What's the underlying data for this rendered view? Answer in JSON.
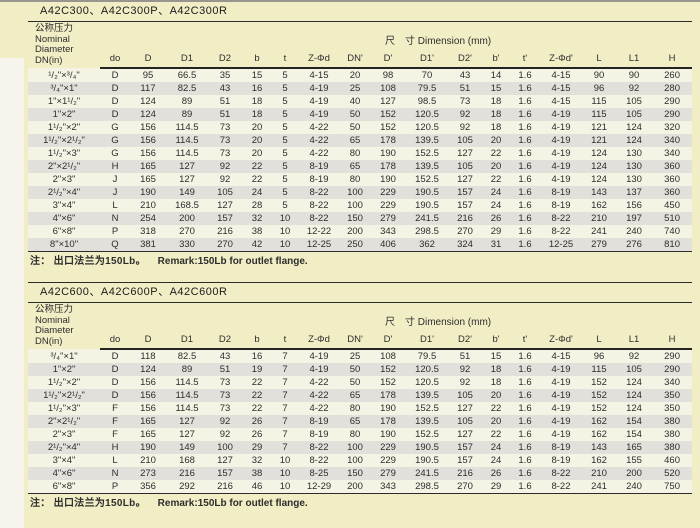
{
  "page": {
    "bg_color": "#f1eec6",
    "stripe_light": "#f5f3e4",
    "stripe_gray": "#e1e0da",
    "rule_color": "#2b2b2b"
  },
  "header": {
    "first_col": {
      "line1": "公称压力",
      "line2": "Nominal",
      "line3": "Diameter",
      "line4": "DN(in)"
    },
    "dimension_label": "尺　寸 Dimension (mm)",
    "columns": [
      "do",
      "D",
      "D1",
      "D2",
      "b",
      "t",
      "Z-Φd",
      "DN'",
      "D'",
      "D1'",
      "D2'",
      "b'",
      "t'",
      "Z-Φd'",
      "L",
      "L1",
      "H"
    ]
  },
  "tables": [
    {
      "title": "A42C300、A42C300P、A42C300R",
      "note_cn": "注： 出口法兰为150Lb。",
      "note_en": "Remark:150Lb for outlet flange.",
      "rows": [
        [
          "¹/₂\"×³/₄\"",
          "D",
          "95",
          "66.5",
          "35",
          "15",
          "5",
          "4-15",
          "20",
          "98",
          "70",
          "43",
          "14",
          "1.6",
          "4-15",
          "90",
          "90",
          "260"
        ],
        [
          "³/₄\"×1\"",
          "D",
          "117",
          "82.5",
          "43",
          "16",
          "5",
          "4-19",
          "25",
          "108",
          "79.5",
          "51",
          "15",
          "1.6",
          "4-15",
          "96",
          "92",
          "280"
        ],
        [
          "1\"×1¹/₂\"",
          "D",
          "124",
          "89",
          "51",
          "18",
          "5",
          "4-19",
          "40",
          "127",
          "98.5",
          "73",
          "18",
          "1.6",
          "4-15",
          "115",
          "105",
          "290"
        ],
        [
          "1\"×2\"",
          "D",
          "124",
          "89",
          "51",
          "18",
          "5",
          "4-19",
          "50",
          "152",
          "120.5",
          "92",
          "18",
          "1.6",
          "4-19",
          "115",
          "105",
          "290"
        ],
        [
          "1¹/₂\"×2\"",
          "G",
          "156",
          "114.5",
          "73",
          "20",
          "5",
          "4-22",
          "50",
          "152",
          "120.5",
          "92",
          "18",
          "1.6",
          "4-19",
          "121",
          "124",
          "320"
        ],
        [
          "1¹/₂\"×2¹/₂\"",
          "G",
          "156",
          "114.5",
          "73",
          "20",
          "5",
          "4-22",
          "65",
          "178",
          "139.5",
          "105",
          "20",
          "1.6",
          "4-19",
          "121",
          "124",
          "340"
        ],
        [
          "1¹/₂\"×3\"",
          "G",
          "156",
          "114.5",
          "73",
          "20",
          "5",
          "4-22",
          "80",
          "190",
          "152.5",
          "127",
          "22",
          "1.6",
          "4-19",
          "124",
          "130",
          "340"
        ],
        [
          "2\"×2¹/₂\"",
          "H",
          "165",
          "127",
          "92",
          "22",
          "5",
          "8-19",
          "65",
          "178",
          "139.5",
          "105",
          "20",
          "1.6",
          "4-19",
          "124",
          "130",
          "360"
        ],
        [
          "2\"×3\"",
          "J",
          "165",
          "127",
          "92",
          "22",
          "5",
          "8-19",
          "80",
          "190",
          "152.5",
          "127",
          "22",
          "1.6",
          "4-19",
          "124",
          "130",
          "360"
        ],
        [
          "2¹/₂\"×4\"",
          "J",
          "190",
          "149",
          "105",
          "24",
          "5",
          "8-22",
          "100",
          "229",
          "190.5",
          "157",
          "24",
          "1.6",
          "8-19",
          "143",
          "137",
          "360"
        ],
        [
          "3\"×4\"",
          "L",
          "210",
          "168.5",
          "127",
          "28",
          "5",
          "8-22",
          "100",
          "229",
          "190.5",
          "157",
          "24",
          "1.6",
          "8-19",
          "162",
          "156",
          "450"
        ],
        [
          "4\"×6\"",
          "N",
          "254",
          "200",
          "157",
          "32",
          "10",
          "8-22",
          "150",
          "279",
          "241.5",
          "216",
          "26",
          "1.6",
          "8-22",
          "210",
          "197",
          "510"
        ],
        [
          "6\"×8\"",
          "P",
          "318",
          "270",
          "216",
          "38",
          "10",
          "12-22",
          "200",
          "343",
          "298.5",
          "270",
          "29",
          "1.6",
          "8-22",
          "241",
          "240",
          "740"
        ],
        [
          "8\"×10\"",
          "Q",
          "381",
          "330",
          "270",
          "42",
          "10",
          "12-25",
          "250",
          "406",
          "362",
          "324",
          "31",
          "1.6",
          "12-25",
          "279",
          "276",
          "810"
        ]
      ]
    },
    {
      "title": "A42C600、A42C600P、A42C600R",
      "note_cn": "注： 出口法兰为150Lb。",
      "note_en": "Remark:150Lb for outlet flange.",
      "rows": [
        [
          "³/₄\"×1\"",
          "D",
          "118",
          "82.5",
          "43",
          "16",
          "7",
          "4-19",
          "25",
          "108",
          "79.5",
          "51",
          "15",
          "1.6",
          "4-15",
          "96",
          "92",
          "290"
        ],
        [
          "1\"×2\"",
          "D",
          "124",
          "89",
          "51",
          "19",
          "7",
          "4-19",
          "50",
          "152",
          "120.5",
          "92",
          "18",
          "1.6",
          "4-19",
          "115",
          "105",
          "290"
        ],
        [
          "1¹/₂\"×2\"",
          "D",
          "156",
          "114.5",
          "73",
          "22",
          "7",
          "4-22",
          "50",
          "152",
          "120.5",
          "92",
          "18",
          "1.6",
          "4-19",
          "152",
          "124",
          "340"
        ],
        [
          "1¹/₂\"×2¹/₂\"",
          "D",
          "156",
          "114.5",
          "73",
          "22",
          "7",
          "4-22",
          "65",
          "178",
          "139.5",
          "105",
          "20",
          "1.6",
          "4-19",
          "152",
          "124",
          "350"
        ],
        [
          "1¹/₂\"×3\"",
          "F",
          "156",
          "114.5",
          "73",
          "22",
          "7",
          "4-22",
          "80",
          "190",
          "152.5",
          "127",
          "22",
          "1.6",
          "4-19",
          "152",
          "124",
          "350"
        ],
        [
          "2\"×2¹/₂\"",
          "F",
          "165",
          "127",
          "92",
          "26",
          "7",
          "8-19",
          "65",
          "178",
          "139.5",
          "105",
          "20",
          "1.6",
          "4-19",
          "162",
          "154",
          "380"
        ],
        [
          "2\"×3\"",
          "F",
          "165",
          "127",
          "92",
          "26",
          "7",
          "8-19",
          "80",
          "190",
          "152.5",
          "127",
          "22",
          "1.6",
          "4-19",
          "162",
          "154",
          "380"
        ],
        [
          "2¹/₂\"×4\"",
          "H",
          "190",
          "149",
          "100",
          "29",
          "7",
          "8-22",
          "100",
          "229",
          "190.5",
          "157",
          "24",
          "1.6",
          "8-19",
          "143",
          "165",
          "380"
        ],
        [
          "3\"×4\"",
          "L",
          "210",
          "168",
          "127",
          "32",
          "10",
          "8-22",
          "100",
          "229",
          "190.5",
          "157",
          "24",
          "1.6",
          "8-19",
          "162",
          "155",
          "460"
        ],
        [
          "4\"×6\"",
          "N",
          "273",
          "216",
          "157",
          "38",
          "10",
          "8-25",
          "150",
          "279",
          "241.5",
          "216",
          "26",
          "1.6",
          "8-22",
          "210",
          "200",
          "520"
        ],
        [
          "6\"×8\"",
          "P",
          "356",
          "292",
          "216",
          "46",
          "10",
          "12-29",
          "200",
          "343",
          "298.5",
          "270",
          "29",
          "1.6",
          "8-22",
          "241",
          "240",
          "750"
        ]
      ]
    }
  ]
}
